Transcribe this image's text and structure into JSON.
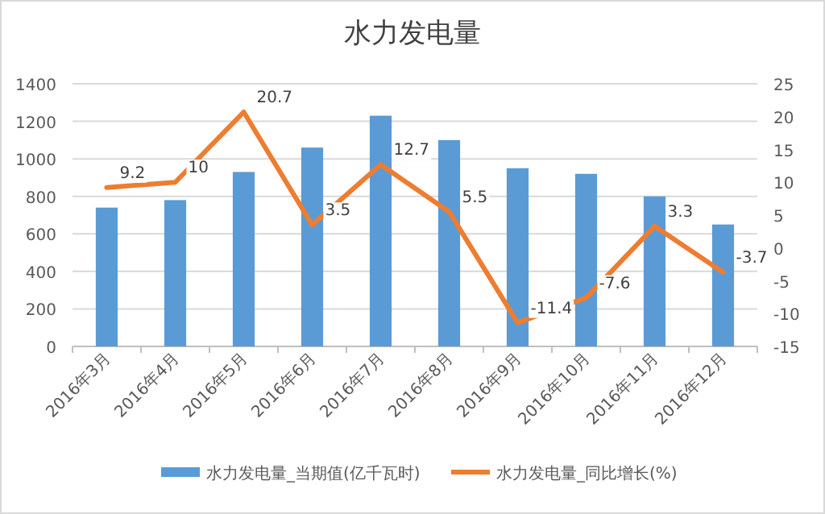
{
  "chart_data": {
    "type": "bar",
    "title": "水力发电量",
    "categories": [
      "2016年3月",
      "2016年4月",
      "2016年5月",
      "2016年6月",
      "2016年7月",
      "2016年8月",
      "2016年9月",
      "2016年10月",
      "2016年11月",
      "2016年12月"
    ],
    "series": [
      {
        "name": "水力发电量_当期值(亿千瓦时)",
        "color": "#5b9bd5",
        "values": [
          740,
          780,
          930,
          1060,
          1230,
          1100,
          950,
          920,
          800,
          650
        ]
      },
      {
        "name": "水力发电量_同比增长(%)",
        "type": "line",
        "axis": "y2",
        "color": "#ed7d31",
        "values": [
          9.2,
          10,
          20.7,
          3.5,
          12.7,
          5.5,
          -11.4,
          -7.6,
          3.3,
          -3.7
        ],
        "value_labels": [
          "9.2",
          "10",
          "20.7",
          "3.5",
          "12.7",
          "5.5",
          "-11.4",
          "-7.6",
          "3.3",
          "-3.7"
        ]
      }
    ],
    "ylim": [
      0,
      1400
    ],
    "yticks": [
      0,
      200,
      400,
      600,
      800,
      1000,
      1200,
      1400
    ],
    "y2lim": [
      -15,
      25
    ],
    "y2ticks": [
      -15,
      -10,
      -5,
      0,
      5,
      10,
      15,
      20,
      25
    ],
    "grid": "y",
    "legend": "bottom"
  }
}
